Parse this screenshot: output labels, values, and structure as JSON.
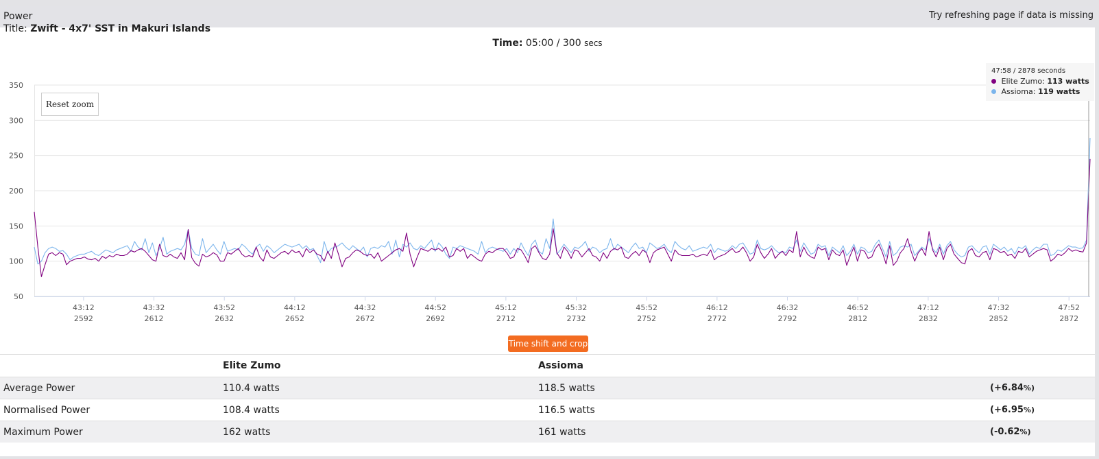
{
  "panel": {
    "title": "Power",
    "hint": "Try refreshing page if data is missing"
  },
  "ride": {
    "title_label": "Title:",
    "title": "Zwift - 4x7' SST in Makuri Islands"
  },
  "time": {
    "label": "Time:",
    "value": "05:00",
    "separator": "/",
    "total": "300",
    "unit": "secs"
  },
  "tooltip": {
    "time": "47:58",
    "seconds": "2878 seconds",
    "sep": "/",
    "series": [
      {
        "name": "Elite Zumo:",
        "value": "113 watts",
        "color": "#800080"
      },
      {
        "name": "Assioma:",
        "value": "119 watts",
        "color": "#7cb5ec"
      }
    ]
  },
  "buttons": {
    "reset_zoom": "Reset zoom",
    "time_shift": "Time shift and crop"
  },
  "chart_data": {
    "type": "line",
    "x_start": 2578,
    "x_end": 2878,
    "xlim": [
      2578,
      2878
    ],
    "ylim": [
      50,
      350
    ],
    "y_ticks": [
      "350",
      "300",
      "250",
      "200",
      "150",
      "100",
      "50"
    ],
    "x_tick_values": [
      2592,
      2612,
      2632,
      2652,
      2672,
      2692,
      2712,
      2732,
      2752,
      2772,
      2792,
      2812,
      2832,
      2852,
      2872
    ],
    "x_tick_times": [
      "43:12",
      "43:32",
      "43:52",
      "44:12",
      "44:32",
      "44:52",
      "45:12",
      "45:32",
      "45:52",
      "46:12",
      "46:32",
      "46:52",
      "47:12",
      "47:32",
      "47:52"
    ],
    "x_tick_secs": [
      "2592",
      "2612",
      "2632",
      "2652",
      "2672",
      "2692",
      "2712",
      "2732",
      "2752",
      "2772",
      "2792",
      "2812",
      "2832",
      "2852",
      "2872"
    ],
    "grid": true,
    "series": [
      {
        "name": "Elite Zumo",
        "color": "#800080",
        "values": [
          170,
          120,
          78,
          95,
          110,
          112,
          108,
          112,
          110,
          95,
          100,
          102,
          104,
          104,
          106,
          103,
          102,
          104,
          100,
          107,
          104,
          108,
          106,
          110,
          108,
          108,
          110,
          115,
          113,
          116,
          118,
          114,
          108,
          102,
          100,
          124,
          108,
          106,
          110,
          106,
          104,
          112,
          102,
          145,
          105,
          97,
          93,
          110,
          106,
          108,
          112,
          109,
          100,
          100,
          112,
          110,
          114,
          118,
          110,
          106,
          108,
          106,
          120,
          106,
          100,
          116,
          106,
          104,
          108,
          112,
          114,
          110,
          116,
          112,
          114,
          106,
          118,
          112,
          116,
          110,
          108,
          100,
          114,
          104,
          126,
          110,
          92,
          104,
          106,
          112,
          116,
          114,
          110,
          108,
          110,
          104,
          112,
          100,
          104,
          108,
          112,
          116,
          118,
          114,
          140,
          110,
          92,
          106,
          118,
          116,
          114,
          118,
          116,
          118,
          114,
          120,
          106,
          108,
          118,
          114,
          118,
          104,
          110,
          106,
          102,
          100,
          110,
          114,
          112,
          116,
          118,
          118,
          112,
          104,
          106,
          118,
          116,
          108,
          98,
          118,
          122,
          112,
          104,
          102,
          110,
          146,
          112,
          104,
          120,
          114,
          104,
          116,
          114,
          106,
          112,
          118,
          108,
          106,
          100,
          112,
          104,
          114,
          118,
          116,
          120,
          106,
          104,
          110,
          114,
          108,
          116,
          112,
          98,
          112,
          116,
          118,
          120,
          110,
          100,
          116,
          110,
          108,
          108,
          108,
          110,
          106,
          108,
          110,
          108,
          116,
          102,
          106,
          108,
          110,
          114,
          118,
          112,
          114,
          120,
          112,
          100,
          106,
          124,
          112,
          104,
          110,
          118,
          104,
          110,
          114,
          108,
          116,
          112,
          142,
          106,
          120,
          110,
          106,
          104,
          120,
          116,
          118,
          102,
          116,
          110,
          108,
          116,
          94,
          108,
          120,
          100,
          116,
          114,
          104,
          106,
          118,
          124,
          112,
          96,
          122,
          94,
          100,
          112,
          118,
          132,
          114,
          100,
          112,
          118,
          108,
          142,
          116,
          106,
          120,
          102,
          118,
          124,
          110,
          104,
          98,
          96,
          114,
          118,
          108,
          106,
          112,
          114,
          102,
          118,
          116,
          112,
          114,
          108,
          110,
          104,
          114,
          112,
          118,
          106,
          110,
          114,
          116,
          118,
          116,
          100,
          104,
          110,
          108,
          112,
          118,
          114,
          116,
          114,
          113,
          126,
          245
        ]
      },
      {
        "name": "Assioma",
        "color": "#7cb5ec",
        "values": [
          120,
          96,
          100,
          112,
          118,
          120,
          118,
          114,
          115,
          110,
          102,
          106,
          108,
          110,
          110,
          112,
          114,
          110,
          108,
          112,
          116,
          114,
          112,
          116,
          118,
          120,
          122,
          114,
          128,
          120,
          116,
          132,
          112,
          126,
          108,
          118,
          134,
          110,
          114,
          116,
          118,
          116,
          124,
          145,
          118,
          110,
          108,
          132,
          112,
          118,
          124,
          116,
          110,
          128,
          114,
          116,
          118,
          116,
          124,
          120,
          114,
          110,
          120,
          124,
          114,
          122,
          118,
          112,
          116,
          120,
          124,
          122,
          120,
          122,
          124,
          118,
          122,
          116,
          118,
          108,
          98,
          128,
          112,
          118,
          120,
          122,
          126,
          120,
          116,
          122,
          118,
          114,
          120,
          106,
          118,
          120,
          118,
          122,
          120,
          128,
          110,
          130,
          106,
          124,
          120,
          126,
          118,
          116,
          122,
          118,
          124,
          130,
          114,
          126,
          120,
          110,
          104,
          120,
          118,
          122,
          120,
          118,
          116,
          114,
          110,
          128,
          112,
          118,
          120,
          118,
          116,
          114,
          118,
          110,
          118,
          112,
          126,
          116,
          108,
          124,
          130,
          114,
          110,
          132,
          118,
          160,
          110,
          116,
          124,
          118,
          112,
          120,
          118,
          122,
          128,
          114,
          120,
          118,
          112,
          116,
          118,
          132,
          116,
          124,
          120,
          116,
          112,
          120,
          126,
          118,
          120,
          112,
          126,
          122,
          118,
          120,
          124,
          116,
          112,
          128,
          122,
          118,
          116,
          122,
          114,
          116,
          118,
          120,
          118,
          124,
          112,
          118,
          116,
          114,
          116,
          122,
          118,
          124,
          126,
          118,
          110,
          112,
          130,
          118,
          116,
          118,
          122,
          116,
          112,
          114,
          112,
          120,
          118,
          130,
          114,
          126,
          118,
          110,
          112,
          124,
          120,
          122,
          108,
          120,
          116,
          112,
          122,
          108,
          114,
          124,
          110,
          120,
          118,
          112,
          114,
          124,
          130,
          118,
          106,
          128,
          108,
          112,
          120,
          122,
          120,
          124,
          108,
          114,
          120,
          116,
          132,
          118,
          112,
          124,
          110,
          122,
          128,
          116,
          110,
          106,
          108,
          120,
          122,
          116,
          112,
          120,
          122,
          110,
          124,
          120,
          116,
          120,
          114,
          118,
          110,
          120,
          118,
          122,
          110,
          116,
          120,
          118,
          124,
          124,
          108,
          110,
          116,
          114,
          118,
          122,
          120,
          120,
          118,
          119,
          130,
          275
        ]
      }
    ]
  },
  "stats": {
    "headers": [
      "",
      "Elite Zumo",
      "Assioma",
      ""
    ],
    "rows": [
      {
        "label": "Average Power",
        "a": "110.4 watts",
        "b": "118.5 watts",
        "diff": "(+6.84",
        "pct": "%)"
      },
      {
        "label": "Normalised Power",
        "a": "108.4 watts",
        "b": "116.5 watts",
        "diff": "(+6.95",
        "pct": "%)"
      },
      {
        "label": "Maximum Power",
        "a": "162 watts",
        "b": "161 watts",
        "diff": "(-0.62",
        "pct": "%)"
      }
    ]
  }
}
